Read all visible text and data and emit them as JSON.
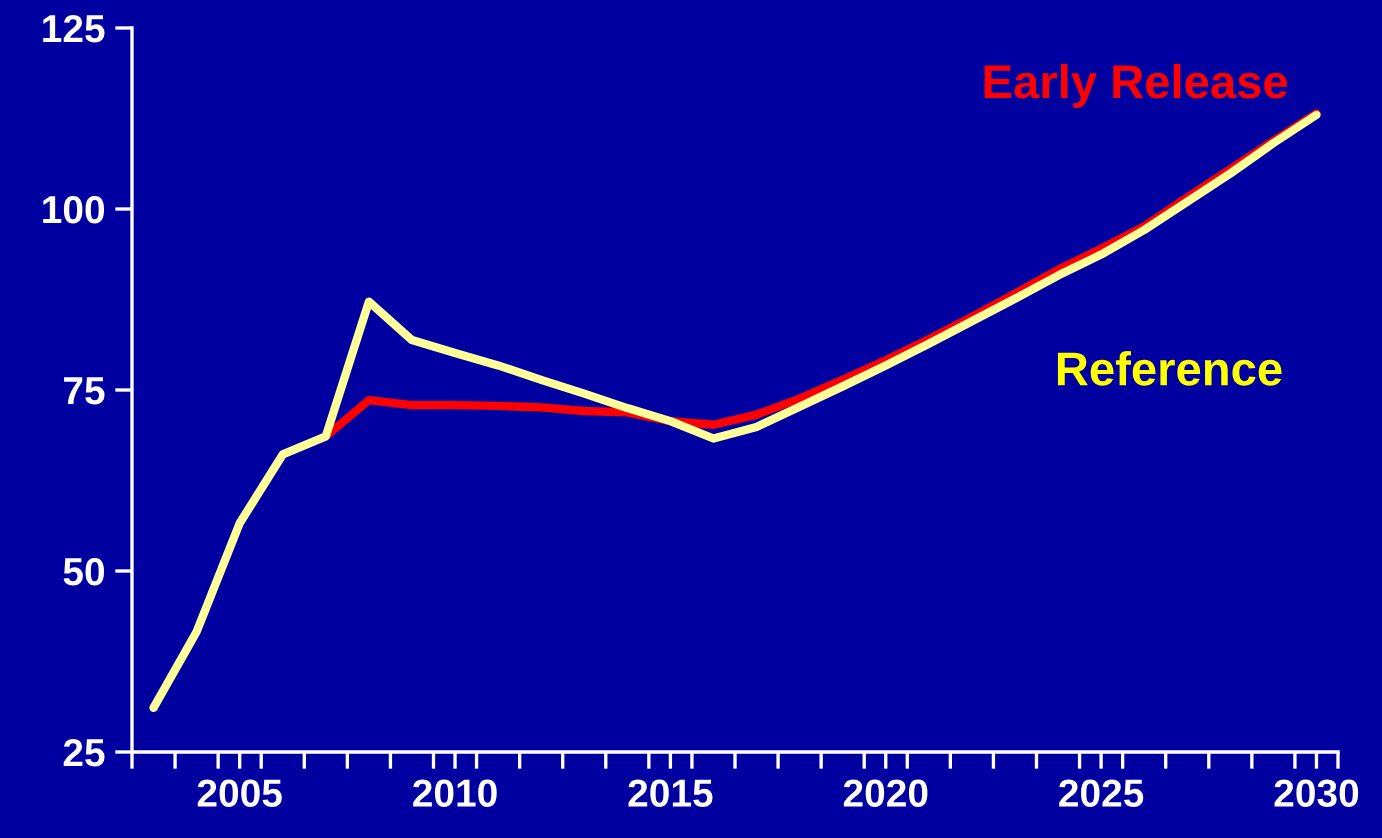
{
  "chart_data": {
    "type": "line",
    "x": [
      2003,
      2004,
      2005,
      2006,
      2007,
      2008,
      2009,
      2010,
      2011,
      2012,
      2013,
      2014,
      2015,
      2016,
      2017,
      2018,
      2019,
      2020,
      2021,
      2022,
      2023,
      2024,
      2025,
      2026,
      2027,
      2028,
      2029,
      2030
    ],
    "series": [
      {
        "name": "Early Release",
        "color": "#ff0000",
        "values": [
          null,
          null,
          null,
          null,
          68.6,
          73.6,
          72.9,
          72.9,
          72.8,
          72.6,
          72.1,
          71.9,
          70.7,
          70.2,
          71.6,
          73.8,
          76.4,
          79.1,
          82.0,
          85.1,
          88.3,
          91.6,
          94.5,
          97.6,
          101.6,
          105.5,
          109.4,
          113.2
        ]
      },
      {
        "name": "Reference",
        "color": "#ffff99",
        "values": [
          31.1,
          41.6,
          56.6,
          66.1,
          68.6,
          87.2,
          81.9,
          80.1,
          78.4,
          76.4,
          74.5,
          72.5,
          70.7,
          68.3,
          69.9,
          72.7,
          75.5,
          78.4,
          81.4,
          84.5,
          87.6,
          90.8,
          93.7,
          97.1,
          101.0,
          104.9,
          109.1,
          113.0
        ]
      }
    ],
    "xlim": [
      2002.5,
      2030.5
    ],
    "xticks": [
      {
        "value": 2002.5,
        "label": null
      },
      {
        "value": 2003.5,
        "label": null
      },
      {
        "value": 2004.5,
        "label": null
      },
      {
        "value": 2005,
        "label": "2005"
      },
      {
        "value": 2005.5,
        "label": null
      },
      {
        "value": 2006.5,
        "label": null
      },
      {
        "value": 2007.5,
        "label": null
      },
      {
        "value": 2008.5,
        "label": null
      },
      {
        "value": 2009.5,
        "label": null
      },
      {
        "value": 2010,
        "label": "2010"
      },
      {
        "value": 2010.5,
        "label": null
      },
      {
        "value": 2011.5,
        "label": null
      },
      {
        "value": 2012.5,
        "label": null
      },
      {
        "value": 2013.5,
        "label": null
      },
      {
        "value": 2014.5,
        "label": null
      },
      {
        "value": 2015,
        "label": "2015"
      },
      {
        "value": 2015.5,
        "label": null
      },
      {
        "value": 2016.5,
        "label": null
      },
      {
        "value": 2017.5,
        "label": null
      },
      {
        "value": 2018.5,
        "label": null
      },
      {
        "value": 2019.5,
        "label": null
      },
      {
        "value": 2020,
        "label": "2020"
      },
      {
        "value": 2020.5,
        "label": null
      },
      {
        "value": 2021.5,
        "label": null
      },
      {
        "value": 2022.5,
        "label": null
      },
      {
        "value": 2023.5,
        "label": null
      },
      {
        "value": 2024.5,
        "label": null
      },
      {
        "value": 2025,
        "label": "2025"
      },
      {
        "value": 2025.5,
        "label": null
      },
      {
        "value": 2026.5,
        "label": null
      },
      {
        "value": 2027.5,
        "label": null
      },
      {
        "value": 2028.5,
        "label": null
      },
      {
        "value": 2029.5,
        "label": null
      },
      {
        "value": 2030,
        "label": "2030"
      },
      {
        "value": 2030.5,
        "label": null
      }
    ],
    "ylim": [
      25,
      125
    ],
    "yticks": [
      25,
      50,
      75,
      100,
      125
    ],
    "grid": false,
    "legend": false,
    "marker": "none",
    "line_style": "solid"
  }
}
